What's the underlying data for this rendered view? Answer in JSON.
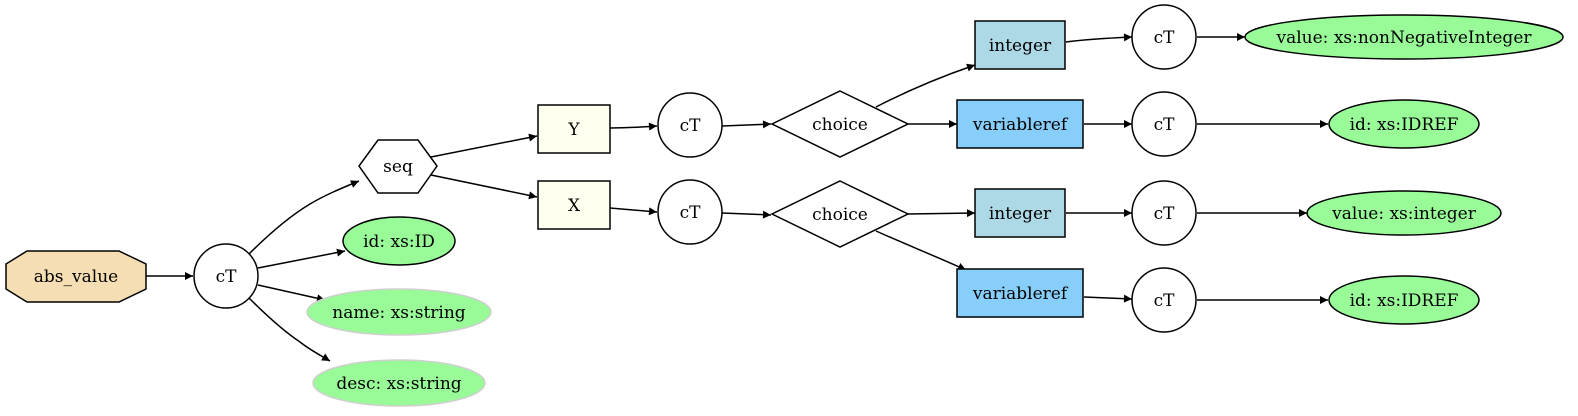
{
  "colors": {
    "root_fill": "#f5deb3",
    "attribute_fill": "#98fb98",
    "optional_attribute_fill": "#98fb98",
    "element_yx_fill": "#fffff0",
    "integer_fill": "#add8e6",
    "variableref_fill": "#87cefa",
    "complex_type_fill": "#ffffff"
  },
  "nodes": {
    "root": "abs_value",
    "ct_root": "cT",
    "seq": "seq",
    "attr_id": "id: xs:ID",
    "attr_name": "name: xs:string",
    "attr_desc": "desc: xs:string",
    "elem_y": "Y",
    "elem_x": "X",
    "ct_y": "cT",
    "ct_x": "cT",
    "choice_y": "choice",
    "choice_x": "choice",
    "y_integer": "integer",
    "y_variableref": "variableref",
    "x_integer": "integer",
    "x_variableref": "variableref",
    "ct_y_integer": "cT",
    "ct_y_variableref": "cT",
    "ct_x_integer": "cT",
    "ct_x_variableref": "cT",
    "y_integer_value": "value: xs:nonNegativeInteger",
    "y_variableref_id": "id: xs:IDREF",
    "x_integer_value": "value: xs:integer",
    "x_variableref_id": "id: xs:IDREF"
  }
}
